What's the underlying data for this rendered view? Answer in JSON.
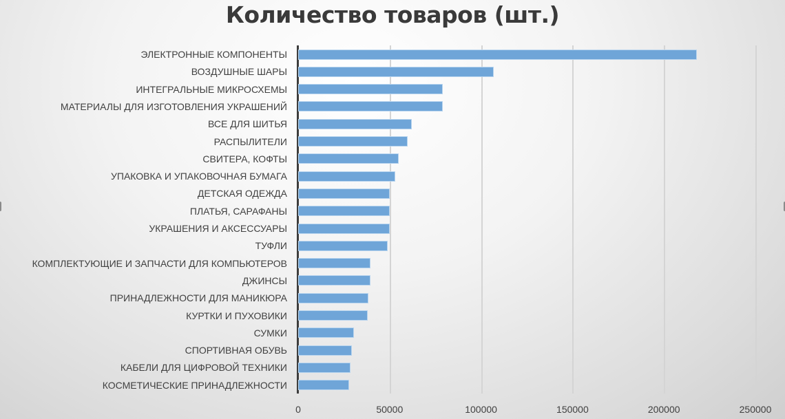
{
  "chart_data": {
    "type": "bar",
    "orientation": "horizontal",
    "title": "Количество товаров (шт.)",
    "xlabel": "",
    "ylabel": "",
    "xlim": [
      0,
      250000
    ],
    "x_ticks": [
      "0",
      "50000",
      "100000",
      "150000",
      "200000",
      "250000"
    ],
    "grid": true,
    "legend": null,
    "bar_color": "#6fa5d8",
    "categories": [
      "ЭЛЕКТРОННЫЕ КОМПОНЕНТЫ",
      "ВОЗДУШНЫЕ ШАРЫ",
      "ИНТЕГРАЛЬНЫЕ МИКРОСХЕМЫ",
      "МАТЕРИАЛЫ ДЛЯ ИЗГОТОВЛЕНИЯ УКРАШЕНИЙ",
      "ВСЕ ДЛЯ ШИТЬЯ",
      "РАСПЫЛИТЕЛИ",
      "СВИТЕРА, КОФТЫ",
      "УПАКОВКА И УПАКОВОЧНАЯ БУМАГА",
      "ДЕТСКАЯ ОДЕЖДА",
      "ПЛАТЬЯ, САРАФАНЫ",
      "УКРАШЕНИЯ И АКСЕССУАРЫ",
      "ТУФЛИ",
      "КОМПЛЕКТУЮЩИЕ И ЗАПЧАСТИ ДЛЯ КОМПЬЮТЕРОВ",
      "ДЖИНСЫ",
      "ПРИНАДЛЕЖНОСТИ ДЛЯ МАНИКЮРА",
      "КУРТКИ И ПУХОВИКИ",
      "СУМКИ",
      "СПОРТИВНАЯ ОБУВЬ",
      "КАБЕЛИ ДЛЯ ЦИФРОВОЙ ТЕХНИКИ",
      "КОСМЕТИЧЕСКИЕ ПРИНАДЛЕЖНОСТИ"
    ],
    "values": [
      218000,
      107000,
      79000,
      79000,
      62000,
      60000,
      55000,
      53000,
      50000,
      50000,
      50000,
      49000,
      39500,
      39500,
      38500,
      38000,
      30500,
      29500,
      28500,
      28000
    ]
  }
}
